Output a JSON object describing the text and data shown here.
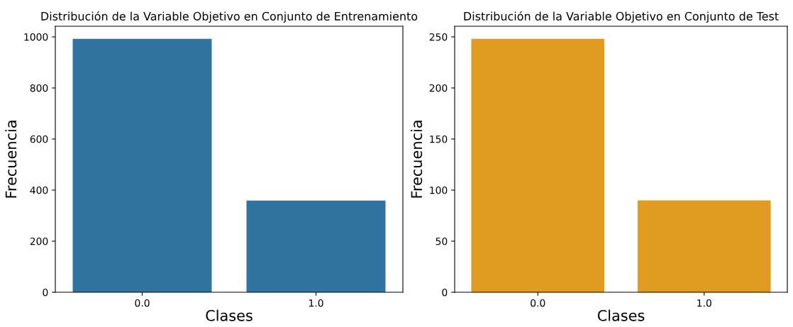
{
  "chart_data": [
    {
      "type": "bar",
      "title": "Distribución de la Variable Objetivo en Conjunto de Entrenamiento",
      "xlabel": "Clases",
      "ylabel": "Frecuencia",
      "categories": [
        "0.0",
        "1.0"
      ],
      "series": [
        {
          "color": "#3274a1",
          "values": [
            992,
            359
          ]
        }
      ],
      "ylim": [
        0,
        1041.6
      ],
      "yticks": [
        0,
        200,
        400,
        600,
        800,
        1000
      ],
      "grid": false
    },
    {
      "type": "bar",
      "title": "Distribución de la Variable Objetivo en Conjunto de Test",
      "xlabel": "Clases",
      "ylabel": "Frecuencia",
      "categories": [
        "0.0",
        "1.0"
      ],
      "series": [
        {
          "color": "#e09c21",
          "values": [
            248,
            90
          ]
        }
      ],
      "ylim": [
        0,
        260.4
      ],
      "yticks": [
        0,
        50,
        100,
        150,
        200,
        250
      ],
      "grid": false
    }
  ]
}
